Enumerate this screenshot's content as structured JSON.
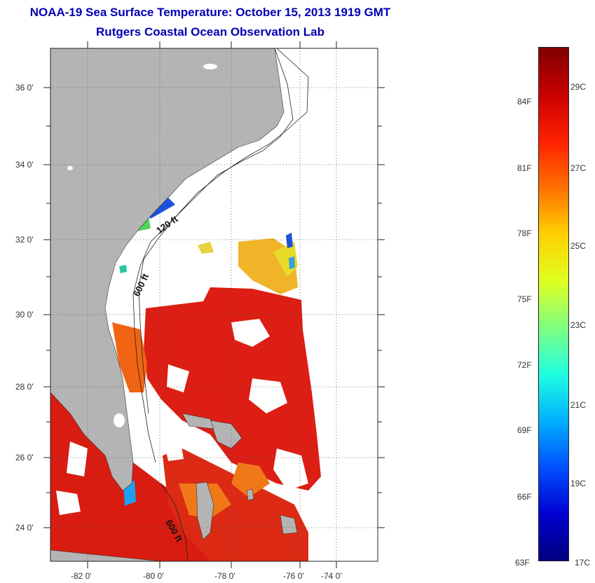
{
  "title": {
    "line1": "NOAA-19 Sea Surface Temperature:  October 15, 2013 1919 GMT",
    "line2": "Rutgers Coastal Ocean Observation Lab"
  },
  "map": {
    "lon_labels": [
      "-82 0'",
      "-80 0'",
      "-78 0'",
      "-76 0'",
      "-74 0'"
    ],
    "lat_labels": [
      "36 0'",
      "34 0'",
      "32 0'",
      "30 0'",
      "28 0'",
      "26 0'",
      "24 0'"
    ],
    "contour_labels": [
      "120 ft",
      "600 ft",
      "600 ft"
    ],
    "colors": {
      "land": "#b4b4b4",
      "ocean_background": "#ffffff",
      "warm_water": "#dc1e14",
      "orange_water": "#f06414",
      "yellow_water": "#f0dc1e",
      "cool_water": "#1e50dc"
    }
  },
  "colorbar": {
    "fahrenheit_labels": [
      "84F",
      "81F",
      "78F",
      "75F",
      "72F",
      "69F",
      "66F",
      "63F"
    ],
    "celsius_labels": [
      "29C",
      "27C",
      "25C",
      "23C",
      "21C",
      "19C",
      "17C"
    ],
    "gradient_colors": [
      "#800000",
      "#c80000",
      "#ff2000",
      "#ff7000",
      "#ffd000",
      "#e0ff20",
      "#80ff80",
      "#20ffe0",
      "#00b0ff",
      "#0050ff",
      "#0000d0",
      "#000080"
    ]
  }
}
